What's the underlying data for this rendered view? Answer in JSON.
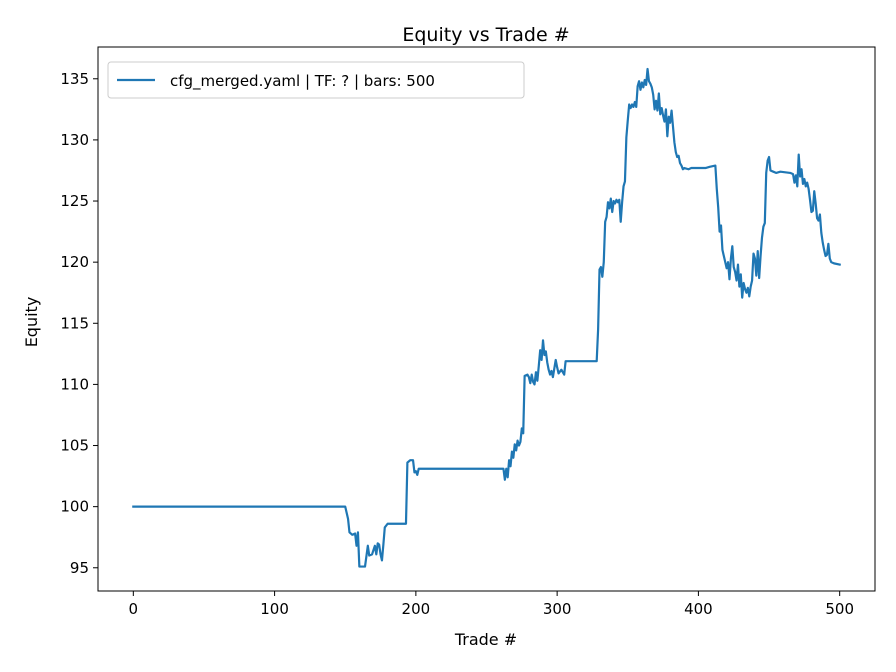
{
  "chart_data": {
    "type": "line",
    "title": "Equity vs Trade #",
    "xlabel": "Trade #",
    "ylabel": "Equity",
    "xlim": [
      -25,
      525
    ],
    "ylim": [
      93.1,
      137.6
    ],
    "xticks": [
      0,
      100,
      200,
      300,
      400,
      500
    ],
    "yticks": [
      95,
      100,
      105,
      110,
      115,
      120,
      125,
      130,
      135
    ],
    "grid": false,
    "legend_position": "top-left",
    "series": [
      {
        "name": "cfg_merged.yaml | TF: ? | bars: 500",
        "color": "#1f77b4",
        "points": [
          [
            0,
            100.0
          ],
          [
            150,
            100.0
          ],
          [
            152,
            99.0
          ],
          [
            153,
            97.9
          ],
          [
            155,
            97.7
          ],
          [
            157,
            97.8
          ],
          [
            158,
            96.8
          ],
          [
            159,
            97.9
          ],
          [
            160,
            95.1
          ],
          [
            164,
            95.1
          ],
          [
            166,
            96.8
          ],
          [
            167,
            96.0
          ],
          [
            169,
            96.1
          ],
          [
            171,
            96.8
          ],
          [
            172,
            96.1
          ],
          [
            173,
            97.0
          ],
          [
            174,
            96.9
          ],
          [
            175,
            96.1
          ],
          [
            176,
            95.6
          ],
          [
            177,
            96.9
          ],
          [
            178,
            98.3
          ],
          [
            180,
            98.6
          ],
          [
            193,
            98.6
          ],
          [
            194,
            103.6
          ],
          [
            196,
            103.8
          ],
          [
            198,
            103.8
          ],
          [
            199,
            102.8
          ],
          [
            200,
            102.9
          ],
          [
            201,
            102.6
          ],
          [
            202,
            103.1
          ],
          [
            262,
            103.1
          ],
          [
            263,
            102.2
          ],
          [
            264,
            103.1
          ],
          [
            265,
            102.4
          ],
          [
            266,
            103.8
          ],
          [
            267,
            103.3
          ],
          [
            268,
            104.5
          ],
          [
            269,
            104.0
          ],
          [
            270,
            105.1
          ],
          [
            271,
            104.6
          ],
          [
            272,
            105.4
          ],
          [
            273,
            105.0
          ],
          [
            274,
            105.3
          ],
          [
            275,
            106.4
          ],
          [
            276,
            106.0
          ],
          [
            277,
            110.7
          ],
          [
            279,
            110.8
          ],
          [
            280,
            110.6
          ],
          [
            281,
            110.1
          ],
          [
            282,
            110.8
          ],
          [
            283,
            110.2
          ],
          [
            284,
            110.0
          ],
          [
            285,
            111.0
          ],
          [
            286,
            110.3
          ],
          [
            287,
            111.5
          ],
          [
            288,
            112.8
          ],
          [
            289,
            112.0
          ],
          [
            290,
            113.6
          ],
          [
            291,
            112.4
          ],
          [
            292,
            112.7
          ],
          [
            293,
            111.8
          ],
          [
            294,
            111.2
          ],
          [
            295,
            110.8
          ],
          [
            296,
            111.1
          ],
          [
            297,
            110.6
          ],
          [
            298,
            111.3
          ],
          [
            299,
            112.0
          ],
          [
            300,
            111.4
          ],
          [
            301,
            110.9
          ],
          [
            303,
            111.2
          ],
          [
            305,
            110.8
          ],
          [
            306,
            111.9
          ],
          [
            328,
            111.9
          ],
          [
            329,
            114.5
          ],
          [
            330,
            119.4
          ],
          [
            331,
            119.6
          ],
          [
            332,
            118.8
          ],
          [
            333,
            120.0
          ],
          [
            334,
            123.3
          ],
          [
            335,
            123.7
          ],
          [
            336,
            124.9
          ],
          [
            337,
            124.4
          ],
          [
            338,
            125.2
          ],
          [
            339,
            124.1
          ],
          [
            340,
            125.0
          ],
          [
            341,
            124.8
          ],
          [
            342,
            125.1
          ],
          [
            343,
            124.9
          ],
          [
            344,
            125.1
          ],
          [
            345,
            123.3
          ],
          [
            346,
            124.9
          ],
          [
            347,
            126.2
          ],
          [
            348,
            126.6
          ],
          [
            349,
            130.2
          ],
          [
            350,
            131.6
          ],
          [
            351,
            132.9
          ],
          [
            352,
            132.6
          ],
          [
            353,
            132.9
          ],
          [
            354,
            132.7
          ],
          [
            355,
            133.1
          ],
          [
            356,
            132.7
          ],
          [
            357,
            134.4
          ],
          [
            358,
            134.8
          ],
          [
            359,
            134.1
          ],
          [
            360,
            134.7
          ],
          [
            361,
            134.3
          ],
          [
            362,
            134.9
          ],
          [
            363,
            134.5
          ],
          [
            364,
            135.8
          ],
          [
            365,
            134.8
          ],
          [
            366,
            134.6
          ],
          [
            367,
            134.3
          ],
          [
            368,
            133.7
          ],
          [
            369,
            132.5
          ],
          [
            370,
            133.2
          ],
          [
            371,
            132.4
          ],
          [
            372,
            133.8
          ],
          [
            373,
            132.1
          ],
          [
            374,
            132.6
          ],
          [
            375,
            132.0
          ],
          [
            376,
            131.5
          ],
          [
            377,
            132.5
          ],
          [
            378,
            130.3
          ],
          [
            379,
            131.9
          ],
          [
            380,
            131.4
          ],
          [
            381,
            132.4
          ],
          [
            382,
            131.1
          ],
          [
            383,
            129.8
          ],
          [
            384,
            129.0
          ],
          [
            385,
            128.6
          ],
          [
            386,
            128.7
          ],
          [
            387,
            128.1
          ],
          [
            388,
            127.9
          ],
          [
            389,
            127.6
          ],
          [
            390,
            127.7
          ],
          [
            393,
            127.6
          ],
          [
            395,
            127.7
          ],
          [
            405,
            127.7
          ],
          [
            408,
            127.8
          ],
          [
            412,
            127.9
          ],
          [
            413,
            126.0
          ],
          [
            414,
            124.5
          ],
          [
            415,
            122.5
          ],
          [
            416,
            123.0
          ],
          [
            417,
            121.0
          ],
          [
            418,
            120.5
          ],
          [
            419,
            120.0
          ],
          [
            420,
            119.5
          ],
          [
            421,
            120.0
          ],
          [
            422,
            118.6
          ],
          [
            423,
            120.3
          ],
          [
            424,
            121.3
          ],
          [
            425,
            119.6
          ],
          [
            426,
            119.2
          ],
          [
            427,
            118.5
          ],
          [
            428,
            119.8
          ],
          [
            429,
            118.0
          ],
          [
            430,
            119.0
          ],
          [
            431,
            117.1
          ],
          [
            432,
            118.3
          ],
          [
            433,
            117.8
          ],
          [
            434,
            117.5
          ],
          [
            435,
            117.9
          ],
          [
            436,
            117.2
          ],
          [
            437,
            118.0
          ],
          [
            438,
            118.5
          ],
          [
            439,
            120.7
          ],
          [
            440,
            120.3
          ],
          [
            441,
            118.9
          ],
          [
            442,
            120.9
          ],
          [
            443,
            118.7
          ],
          [
            444,
            120.5
          ],
          [
            445,
            122.0
          ],
          [
            446,
            122.9
          ],
          [
            447,
            123.2
          ],
          [
            448,
            127.3
          ],
          [
            449,
            128.3
          ],
          [
            450,
            128.6
          ],
          [
            451,
            127.5
          ],
          [
            453,
            127.4
          ],
          [
            455,
            127.3
          ],
          [
            458,
            127.4
          ],
          [
            465,
            127.3
          ],
          [
            467,
            127.2
          ],
          [
            468,
            126.5
          ],
          [
            469,
            127.1
          ],
          [
            470,
            126.2
          ],
          [
            471,
            128.8
          ],
          [
            472,
            127.0
          ],
          [
            473,
            127.6
          ],
          [
            474,
            126.4
          ],
          [
            475,
            126.8
          ],
          [
            476,
            126.2
          ],
          [
            477,
            126.5
          ],
          [
            478,
            126.0
          ],
          [
            479,
            125.1
          ],
          [
            480,
            124.1
          ],
          [
            481,
            124.2
          ],
          [
            482,
            125.8
          ],
          [
            483,
            124.8
          ],
          [
            484,
            123.6
          ],
          [
            485,
            123.4
          ],
          [
            486,
            123.9
          ],
          [
            487,
            122.4
          ],
          [
            488,
            121.6
          ],
          [
            489,
            121.0
          ],
          [
            490,
            120.5
          ],
          [
            491,
            120.6
          ],
          [
            492,
            121.5
          ],
          [
            493,
            120.3
          ],
          [
            494,
            120.0
          ],
          [
            496,
            119.9
          ],
          [
            500,
            119.8
          ]
        ]
      }
    ]
  }
}
